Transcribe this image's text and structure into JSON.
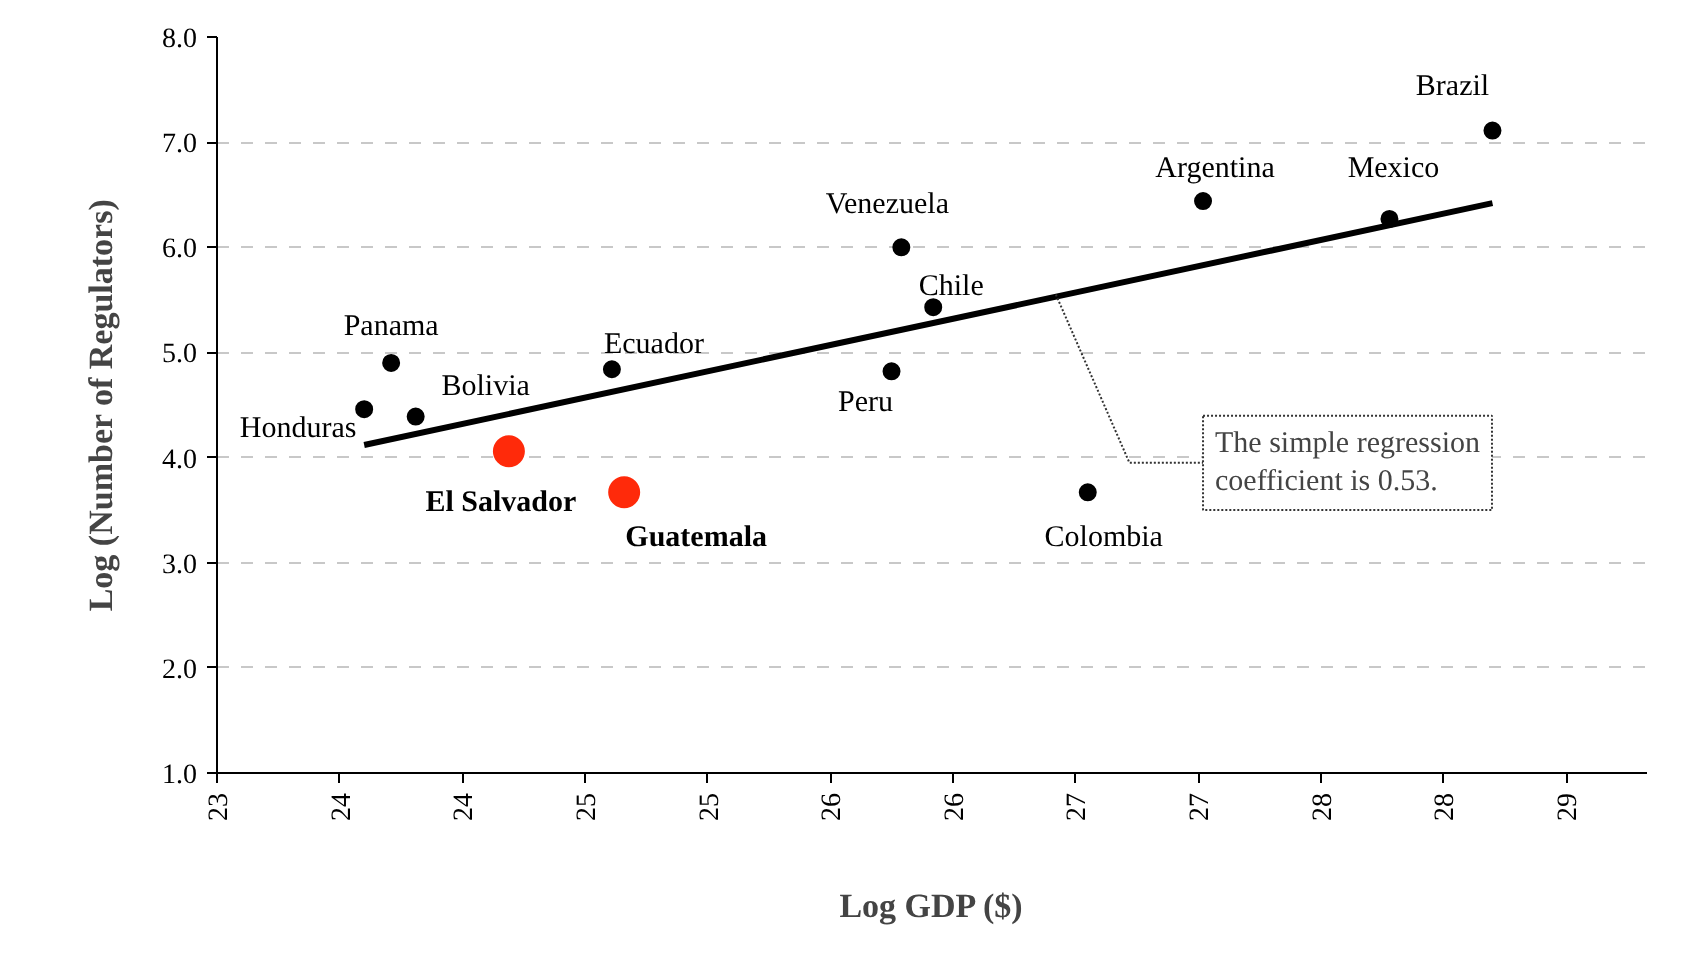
{
  "chart_data": {
    "type": "scatter",
    "xlabel": "Log GDP ($)",
    "ylabel": "Log (Number of Regulators)",
    "xlim": [
      23,
      28.83
    ],
    "ylim": [
      1,
      8
    ],
    "xticks": [
      23,
      {
        "value": 23.5,
        "label": "24"
      },
      24,
      {
        "value": 24.5,
        "label": "25"
      },
      25,
      {
        "value": 25.5,
        "label": "26"
      },
      26,
      {
        "value": 26.5,
        "label": "27"
      },
      27,
      {
        "value": 27.5,
        "label": "28"
      },
      28,
      {
        "value": 28.5,
        "label": "29"
      }
    ],
    "yticks": [
      {
        "value": 1,
        "label": "1.0"
      },
      {
        "value": 2,
        "label": "2.0"
      },
      {
        "value": 3,
        "label": "3.0"
      },
      {
        "value": 4,
        "label": "4.0"
      },
      {
        "value": 5,
        "label": "5.0"
      },
      {
        "value": 6,
        "label": "6.0"
      },
      {
        "value": 7,
        "label": "7.0"
      },
      {
        "value": 8,
        "label": "8.0"
      }
    ],
    "grid": "y",
    "marker": "circle",
    "series": [
      {
        "color": "#000000",
        "x": [
          23.6,
          23.71,
          23.81,
          24.61,
          25.79,
          25.92,
          25.75,
          26.55,
          27.02,
          27.78,
          28.2
        ],
        "values": [
          4.46,
          4.9,
          4.39,
          4.84,
          6.0,
          5.43,
          4.82,
          3.67,
          6.44,
          6.27,
          7.11
        ]
      },
      {
        "color": "#ff2a0a",
        "x": [
          24.19,
          24.66
        ],
        "values": [
          4.06,
          3.67
        ]
      },
      {
        "type": "line",
        "marker": "none",
        "color": "#000000",
        "x": [
          23.6,
          28.2
        ],
        "values": [
          4.12,
          6.42
        ]
      }
    ],
    "annotations": [
      {
        "text": "Honduras",
        "x": 23.6,
        "y": 4.46
      },
      {
        "text": "Panama",
        "x": 23.71,
        "y": 4.9
      },
      {
        "text": "Bolivia",
        "x": 23.81,
        "y": 4.39
      },
      {
        "text": "El Salvador",
        "x": 24.19,
        "y": 4.06
      },
      {
        "text": "Guatemala",
        "x": 24.66,
        "y": 3.67
      },
      {
        "text": "Ecuador",
        "x": 24.61,
        "y": 4.84
      },
      {
        "text": "Venezuela",
        "x": 25.79,
        "y": 6.0
      },
      {
        "text": "Chile",
        "x": 25.92,
        "y": 5.43
      },
      {
        "text": "Peru",
        "x": 25.75,
        "y": 4.82
      },
      {
        "text": "Colombia",
        "x": 26.55,
        "y": 3.67
      },
      {
        "text": "Argentina",
        "x": 27.02,
        "y": 6.44
      },
      {
        "text": "Mexico",
        "x": 27.78,
        "y": 6.27
      },
      {
        "text": "Brazil",
        "x": 28.2,
        "y": 7.11
      },
      {
        "text": "The simple regression\ncoefficient is 0.53.",
        "x": 26.42,
        "y": 5.55
      }
    ]
  }
}
